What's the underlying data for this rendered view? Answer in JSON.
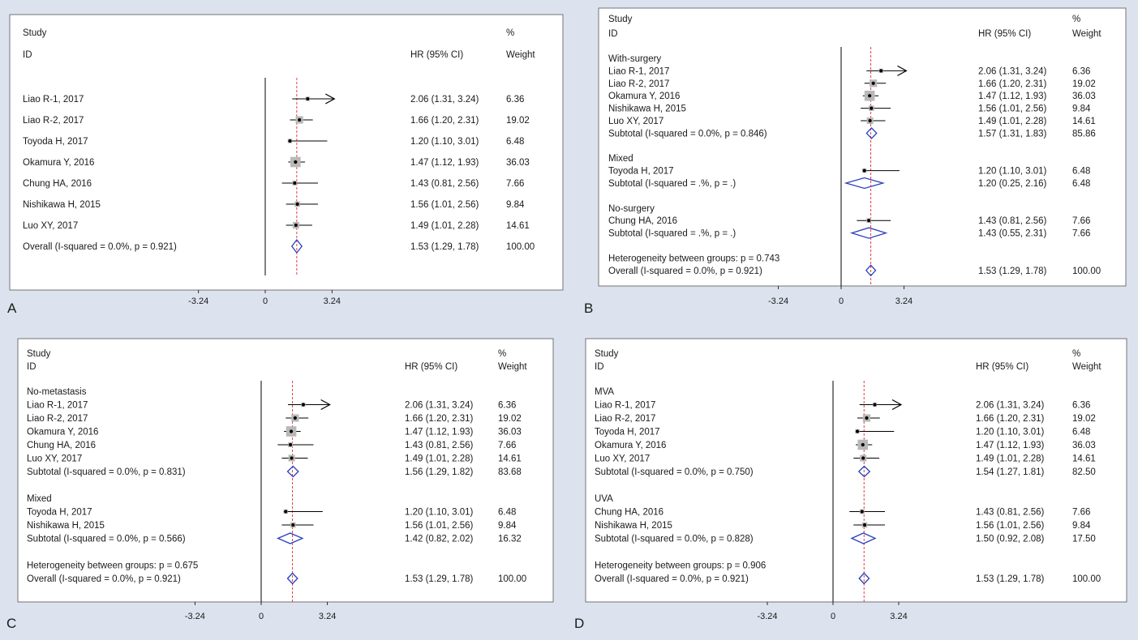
{
  "colors": {
    "background": "#dce3ee",
    "panel": "#ffffff",
    "null_line": "#000000",
    "overall_line": "#e0403c",
    "diamond": "#2a3fbf",
    "ci_line": "#000000",
    "weight_box": "#b8b8b8"
  },
  "chart_data": [
    {
      "type": "forest",
      "panel_label": "A",
      "header": {
        "study": "Study",
        "id": "ID",
        "hr": "HR (95% CI)",
        "pct": "%",
        "weight": "Weight"
      },
      "x_ticks": [
        -3.24,
        0,
        3.24
      ],
      "x_tick_labels": [
        "-3.24",
        "0",
        "3.24"
      ],
      "overall_line_x": 1.53,
      "rows": [
        {
          "kind": "study",
          "label": "Liao R-1, 2017",
          "hr": 2.06,
          "lo": 1.31,
          "hi": 3.24,
          "ci_text": "2.06 (1.31, 3.24)",
          "weight": 6.36,
          "weight_text": "6.36"
        },
        {
          "kind": "study",
          "label": "Liao R-2, 2017",
          "hr": 1.66,
          "lo": 1.2,
          "hi": 2.31,
          "ci_text": "1.66 (1.20, 2.31)",
          "weight": 19.02,
          "weight_text": "19.02"
        },
        {
          "kind": "study",
          "label": "Toyoda H, 2017",
          "hr": 1.2,
          "lo": 1.1,
          "hi": 3.01,
          "ci_text": "1.20 (1.10, 3.01)",
          "weight": 6.48,
          "weight_text": "6.48"
        },
        {
          "kind": "study",
          "label": "Okamura Y, 2016",
          "hr": 1.47,
          "lo": 1.12,
          "hi": 1.93,
          "ci_text": "1.47 (1.12, 1.93)",
          "weight": 36.03,
          "weight_text": "36.03"
        },
        {
          "kind": "study",
          "label": "Chung HA, 2016",
          "hr": 1.43,
          "lo": 0.81,
          "hi": 2.56,
          "ci_text": "1.43 (0.81, 2.56)",
          "weight": 7.66,
          "weight_text": "7.66"
        },
        {
          "kind": "study",
          "label": "Nishikawa H, 2015",
          "hr": 1.56,
          "lo": 1.01,
          "hi": 2.56,
          "ci_text": "1.56 (1.01, 2.56)",
          "weight": 9.84,
          "weight_text": "9.84"
        },
        {
          "kind": "study",
          "label": "Luo XY, 2017",
          "hr": 1.49,
          "lo": 1.01,
          "hi": 2.28,
          "ci_text": "1.49 (1.01, 2.28)",
          "weight": 14.61,
          "weight_text": "14.61"
        },
        {
          "kind": "overall",
          "label": "Overall  (I-squared = 0.0%, p = 0.921)",
          "hr": 1.53,
          "lo": 1.29,
          "hi": 1.78,
          "ci_text": "1.53 (1.29, 1.78)",
          "weight_text": "100.00"
        }
      ]
    },
    {
      "type": "forest",
      "panel_label": "B",
      "header": {
        "study": "Study",
        "id": "ID",
        "hr": "HR (95% CI)",
        "pct": "%",
        "weight": "Weight"
      },
      "x_ticks": [
        -3.24,
        0,
        3.24
      ],
      "x_tick_labels": [
        "-3.24",
        "0",
        "3.24"
      ],
      "overall_line_x": 1.53,
      "rows": [
        {
          "kind": "group",
          "label": "With-surgery"
        },
        {
          "kind": "study",
          "label": "Liao R-1, 2017",
          "hr": 2.06,
          "lo": 1.31,
          "hi": 3.24,
          "ci_text": "2.06 (1.31, 3.24)",
          "weight": 6.36,
          "weight_text": "6.36"
        },
        {
          "kind": "study",
          "label": "Liao R-2, 2017",
          "hr": 1.66,
          "lo": 1.2,
          "hi": 2.31,
          "ci_text": "1.66 (1.20, 2.31)",
          "weight": 19.02,
          "weight_text": "19.02"
        },
        {
          "kind": "study",
          "label": "Okamura Y, 2016",
          "hr": 1.47,
          "lo": 1.12,
          "hi": 1.93,
          "ci_text": "1.47 (1.12, 1.93)",
          "weight": 36.03,
          "weight_text": "36.03"
        },
        {
          "kind": "study",
          "label": "Nishikawa H, 2015",
          "hr": 1.56,
          "lo": 1.01,
          "hi": 2.56,
          "ci_text": "1.56 (1.01, 2.56)",
          "weight": 9.84,
          "weight_text": "9.84"
        },
        {
          "kind": "study",
          "label": "Luo XY, 2017",
          "hr": 1.49,
          "lo": 1.01,
          "hi": 2.28,
          "ci_text": "1.49 (1.01, 2.28)",
          "weight": 14.61,
          "weight_text": "14.61"
        },
        {
          "kind": "subtotal",
          "label": "Subtotal  (I-squared = 0.0%, p = 0.846)",
          "hr": 1.57,
          "lo": 1.31,
          "hi": 1.83,
          "ci_text": "1.57 (1.31, 1.83)",
          "weight_text": "85.86"
        },
        {
          "kind": "blank"
        },
        {
          "kind": "group",
          "label": "Mixed"
        },
        {
          "kind": "study",
          "label": "Toyoda H, 2017",
          "hr": 1.2,
          "lo": 1.1,
          "hi": 3.01,
          "ci_text": "1.20 (1.10, 3.01)",
          "weight": 6.48,
          "weight_text": "6.48"
        },
        {
          "kind": "subtotal",
          "label": "Subtotal  (I-squared = .%, p = .)",
          "hr": 1.2,
          "lo": 0.25,
          "hi": 2.16,
          "ci_text": "1.20 (0.25, 2.16)",
          "weight_text": "6.48"
        },
        {
          "kind": "blank"
        },
        {
          "kind": "group",
          "label": "No-surgery"
        },
        {
          "kind": "study",
          "label": "Chung HA, 2016",
          "hr": 1.43,
          "lo": 0.81,
          "hi": 2.56,
          "ci_text": "1.43 (0.81, 2.56)",
          "weight": 7.66,
          "weight_text": "7.66"
        },
        {
          "kind": "subtotal",
          "label": "Subtotal  (I-squared = .%, p = .)",
          "hr": 1.43,
          "lo": 0.55,
          "hi": 2.31,
          "ci_text": "1.43 (0.55, 2.31)",
          "weight_text": "7.66"
        },
        {
          "kind": "blank"
        },
        {
          "kind": "note",
          "label": "Heterogeneity between groups: p = 0.743"
        },
        {
          "kind": "overall",
          "label": "Overall  (I-squared = 0.0%, p = 0.921)",
          "hr": 1.53,
          "lo": 1.29,
          "hi": 1.78,
          "ci_text": "1.53 (1.29, 1.78)",
          "weight_text": "100.00"
        }
      ]
    },
    {
      "type": "forest",
      "panel_label": "C",
      "header": {
        "study": "Study",
        "id": "ID",
        "hr": "HR (95% CI)",
        "pct": "%",
        "weight": "Weight"
      },
      "x_ticks": [
        -3.24,
        0,
        3.24
      ],
      "x_tick_labels": [
        "-3.24",
        "0",
        "3.24"
      ],
      "overall_line_x": 1.53,
      "rows": [
        {
          "kind": "group",
          "label": "No-metastasis"
        },
        {
          "kind": "study",
          "label": "Liao R-1, 2017",
          "hr": 2.06,
          "lo": 1.31,
          "hi": 3.24,
          "ci_text": "2.06 (1.31, 3.24)",
          "weight": 6.36,
          "weight_text": "6.36"
        },
        {
          "kind": "study",
          "label": "Liao R-2, 2017",
          "hr": 1.66,
          "lo": 1.2,
          "hi": 2.31,
          "ci_text": "1.66 (1.20, 2.31)",
          "weight": 19.02,
          "weight_text": "19.02"
        },
        {
          "kind": "study",
          "label": "Okamura Y, 2016",
          "hr": 1.47,
          "lo": 1.12,
          "hi": 1.93,
          "ci_text": "1.47 (1.12, 1.93)",
          "weight": 36.03,
          "weight_text": "36.03"
        },
        {
          "kind": "study",
          "label": "Chung HA, 2016",
          "hr": 1.43,
          "lo": 0.81,
          "hi": 2.56,
          "ci_text": "1.43 (0.81, 2.56)",
          "weight": 7.66,
          "weight_text": "7.66"
        },
        {
          "kind": "study",
          "label": "Luo XY, 2017",
          "hr": 1.49,
          "lo": 1.01,
          "hi": 2.28,
          "ci_text": "1.49 (1.01, 2.28)",
          "weight": 14.61,
          "weight_text": "14.61"
        },
        {
          "kind": "subtotal",
          "label": "Subtotal  (I-squared = 0.0%, p = 0.831)",
          "hr": 1.56,
          "lo": 1.29,
          "hi": 1.82,
          "ci_text": "1.56 (1.29, 1.82)",
          "weight_text": "83.68"
        },
        {
          "kind": "blank"
        },
        {
          "kind": "group",
          "label": "Mixed"
        },
        {
          "kind": "study",
          "label": "Toyoda H, 2017",
          "hr": 1.2,
          "lo": 1.1,
          "hi": 3.01,
          "ci_text": "1.20 (1.10, 3.01)",
          "weight": 6.48,
          "weight_text": "6.48"
        },
        {
          "kind": "study",
          "label": "Nishikawa H, 2015",
          "hr": 1.56,
          "lo": 1.01,
          "hi": 2.56,
          "ci_text": "1.56 (1.01, 2.56)",
          "weight": 9.84,
          "weight_text": "9.84"
        },
        {
          "kind": "subtotal",
          "label": "Subtotal  (I-squared = 0.0%, p = 0.566)",
          "hr": 1.42,
          "lo": 0.82,
          "hi": 2.02,
          "ci_text": "1.42 (0.82, 2.02)",
          "weight_text": "16.32"
        },
        {
          "kind": "blank"
        },
        {
          "kind": "note",
          "label": "Heterogeneity between groups: p = 0.675"
        },
        {
          "kind": "overall",
          "label": "Overall  (I-squared = 0.0%, p = 0.921)",
          "hr": 1.53,
          "lo": 1.29,
          "hi": 1.78,
          "ci_text": "1.53 (1.29, 1.78)",
          "weight_text": "100.00"
        }
      ]
    },
    {
      "type": "forest",
      "panel_label": "D",
      "header": {
        "study": "Study",
        "id": "ID",
        "hr": "HR (95% CI)",
        "pct": "%",
        "weight": "Weight"
      },
      "x_ticks": [
        -3.24,
        0,
        3.24
      ],
      "x_tick_labels": [
        "-3.24",
        "0",
        "3.24"
      ],
      "overall_line_x": 1.53,
      "rows": [
        {
          "kind": "group",
          "label": "MVA"
        },
        {
          "kind": "study",
          "label": "Liao R-1, 2017",
          "hr": 2.06,
          "lo": 1.31,
          "hi": 3.24,
          "ci_text": "2.06 (1.31, 3.24)",
          "weight": 6.36,
          "weight_text": "6.36"
        },
        {
          "kind": "study",
          "label": "Liao R-2, 2017",
          "hr": 1.66,
          "lo": 1.2,
          "hi": 2.31,
          "ci_text": "1.66 (1.20, 2.31)",
          "weight": 19.02,
          "weight_text": "19.02"
        },
        {
          "kind": "study",
          "label": "Toyoda H, 2017",
          "hr": 1.2,
          "lo": 1.1,
          "hi": 3.01,
          "ci_text": "1.20 (1.10, 3.01)",
          "weight": 6.48,
          "weight_text": "6.48"
        },
        {
          "kind": "study",
          "label": "Okamura Y, 2016",
          "hr": 1.47,
          "lo": 1.12,
          "hi": 1.93,
          "ci_text": "1.47 (1.12, 1.93)",
          "weight": 36.03,
          "weight_text": "36.03"
        },
        {
          "kind": "study",
          "label": "Luo XY, 2017",
          "hr": 1.49,
          "lo": 1.01,
          "hi": 2.28,
          "ci_text": "1.49 (1.01, 2.28)",
          "weight": 14.61,
          "weight_text": "14.61"
        },
        {
          "kind": "subtotal",
          "label": "Subtotal  (I-squared = 0.0%, p = 0.750)",
          "hr": 1.54,
          "lo": 1.27,
          "hi": 1.81,
          "ci_text": "1.54 (1.27, 1.81)",
          "weight_text": "82.50"
        },
        {
          "kind": "blank"
        },
        {
          "kind": "group",
          "label": "UVA"
        },
        {
          "kind": "study",
          "label": "Chung HA, 2016",
          "hr": 1.43,
          "lo": 0.81,
          "hi": 2.56,
          "ci_text": "1.43 (0.81, 2.56)",
          "weight": 7.66,
          "weight_text": "7.66"
        },
        {
          "kind": "study",
          "label": "Nishikawa H, 2015",
          "hr": 1.56,
          "lo": 1.01,
          "hi": 2.56,
          "ci_text": "1.56 (1.01, 2.56)",
          "weight": 9.84,
          "weight_text": "9.84"
        },
        {
          "kind": "subtotal",
          "label": "Subtotal  (I-squared = 0.0%, p = 0.828)",
          "hr": 1.5,
          "lo": 0.92,
          "hi": 2.08,
          "ci_text": "1.50 (0.92, 2.08)",
          "weight_text": "17.50"
        },
        {
          "kind": "blank"
        },
        {
          "kind": "note",
          "label": "Heterogeneity between groups: p = 0.906"
        },
        {
          "kind": "overall",
          "label": "Overall  (I-squared = 0.0%, p = 0.921)",
          "hr": 1.53,
          "lo": 1.29,
          "hi": 1.78,
          "ci_text": "1.53 (1.29, 1.78)",
          "weight_text": "100.00"
        }
      ]
    }
  ]
}
